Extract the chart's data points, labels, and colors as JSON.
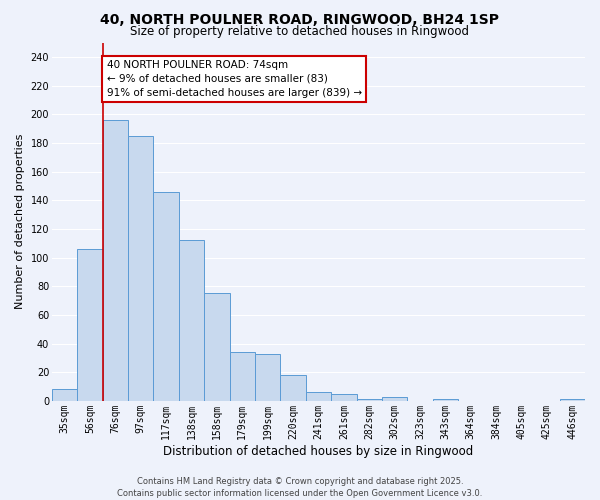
{
  "title": "40, NORTH POULNER ROAD, RINGWOOD, BH24 1SP",
  "subtitle": "Size of property relative to detached houses in Ringwood",
  "xlabel": "Distribution of detached houses by size in Ringwood",
  "ylabel": "Number of detached properties",
  "bin_labels": [
    "35sqm",
    "56sqm",
    "76sqm",
    "97sqm",
    "117sqm",
    "138sqm",
    "158sqm",
    "179sqm",
    "199sqm",
    "220sqm",
    "241sqm",
    "261sqm",
    "282sqm",
    "302sqm",
    "323sqm",
    "343sqm",
    "364sqm",
    "384sqm",
    "405sqm",
    "425sqm",
    "446sqm"
  ],
  "bar_values": [
    8,
    106,
    196,
    185,
    146,
    112,
    75,
    34,
    33,
    18,
    6,
    5,
    1,
    3,
    0,
    1,
    0,
    0,
    0,
    0,
    1
  ],
  "bar_color": "#c8d9ee",
  "bar_edge_color": "#5b9bd5",
  "highlight_bin_index": 2,
  "highlight_line_color": "#cc0000",
  "ylim": [
    0,
    250
  ],
  "yticks": [
    0,
    20,
    40,
    60,
    80,
    100,
    120,
    140,
    160,
    180,
    200,
    220,
    240
  ],
  "annotation_text": "40 NORTH POULNER ROAD: 74sqm\n← 9% of detached houses are smaller (83)\n91% of semi-detached houses are larger (839) →",
  "annotation_box_facecolor": "#ffffff",
  "annotation_box_edgecolor": "#cc0000",
  "footer_line1": "Contains HM Land Registry data © Crown copyright and database right 2025.",
  "footer_line2": "Contains public sector information licensed under the Open Government Licence v3.0.",
  "bg_color": "#eef2fb",
  "grid_color": "#ffffff",
  "title_fontsize": 10,
  "subtitle_fontsize": 8.5,
  "ylabel_fontsize": 8,
  "xlabel_fontsize": 8.5,
  "tick_fontsize": 7,
  "annotation_fontsize": 7.5,
  "footer_fontsize": 6
}
